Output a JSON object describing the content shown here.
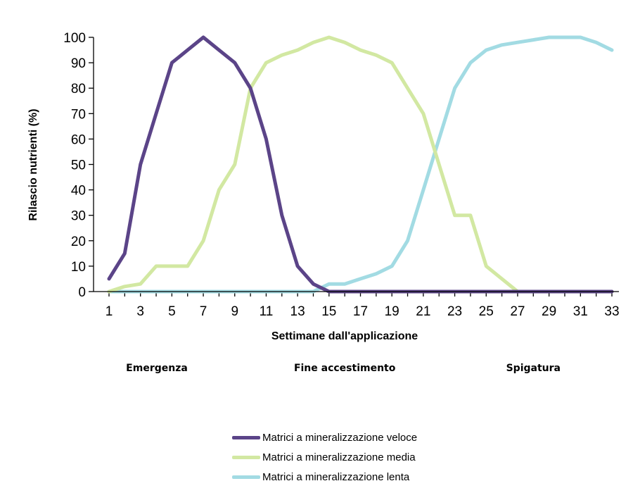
{
  "chart_data": {
    "type": "line",
    "xlabel": "Settimane dall'applicazione",
    "ylabel": "Rilascio nutrienti (%)",
    "ylim": [
      0,
      100
    ],
    "yticks": [
      0,
      10,
      20,
      30,
      40,
      50,
      60,
      70,
      80,
      90,
      100
    ],
    "xlim": [
      1,
      33
    ],
    "xticks": [
      1,
      3,
      5,
      7,
      9,
      11,
      13,
      15,
      17,
      19,
      21,
      23,
      25,
      27,
      29,
      31,
      33
    ],
    "grid": false,
    "legend_position": "bottom",
    "phases": [
      {
        "label": "Emergenza",
        "x": 4
      },
      {
        "label": "Fine accestimento",
        "x": 16
      },
      {
        "label": "Spigatura",
        "x": 28
      }
    ],
    "x": [
      1,
      2,
      3,
      4,
      5,
      6,
      7,
      8,
      9,
      10,
      11,
      12,
      13,
      14,
      15,
      16,
      17,
      18,
      19,
      20,
      21,
      22,
      23,
      24,
      25,
      26,
      27,
      28,
      29,
      30,
      31,
      32,
      33
    ],
    "series": [
      {
        "name": "Matrici a mineralizzazione veloce",
        "color": "#5b4488",
        "values": [
          5,
          15,
          50,
          70,
          90,
          95,
          100,
          95,
          90,
          80,
          60,
          30,
          10,
          3,
          0,
          0,
          0,
          0,
          0,
          0,
          0,
          0,
          0,
          0,
          0,
          0,
          0,
          0,
          0,
          0,
          0,
          0,
          0
        ]
      },
      {
        "name": "Matrici a mineralizzazione media",
        "color": "#d2e8a2",
        "values": [
          0,
          2,
          3,
          10,
          10,
          10,
          20,
          40,
          50,
          80,
          90,
          93,
          95,
          98,
          100,
          98,
          95,
          93,
          90,
          80,
          70,
          50,
          30,
          30,
          10,
          5,
          0,
          0,
          0,
          0,
          0,
          0,
          0
        ]
      },
      {
        "name": "Matrici a mineralizzazione lenta",
        "color": "#a2dbe3",
        "values": [
          0,
          0,
          0,
          0,
          0,
          0,
          0,
          0,
          0,
          0,
          0,
          0,
          0,
          0,
          3,
          3,
          5,
          7,
          10,
          20,
          40,
          60,
          80,
          90,
          95,
          97,
          98,
          99,
          100,
          100,
          100,
          98,
          95
        ]
      }
    ]
  }
}
